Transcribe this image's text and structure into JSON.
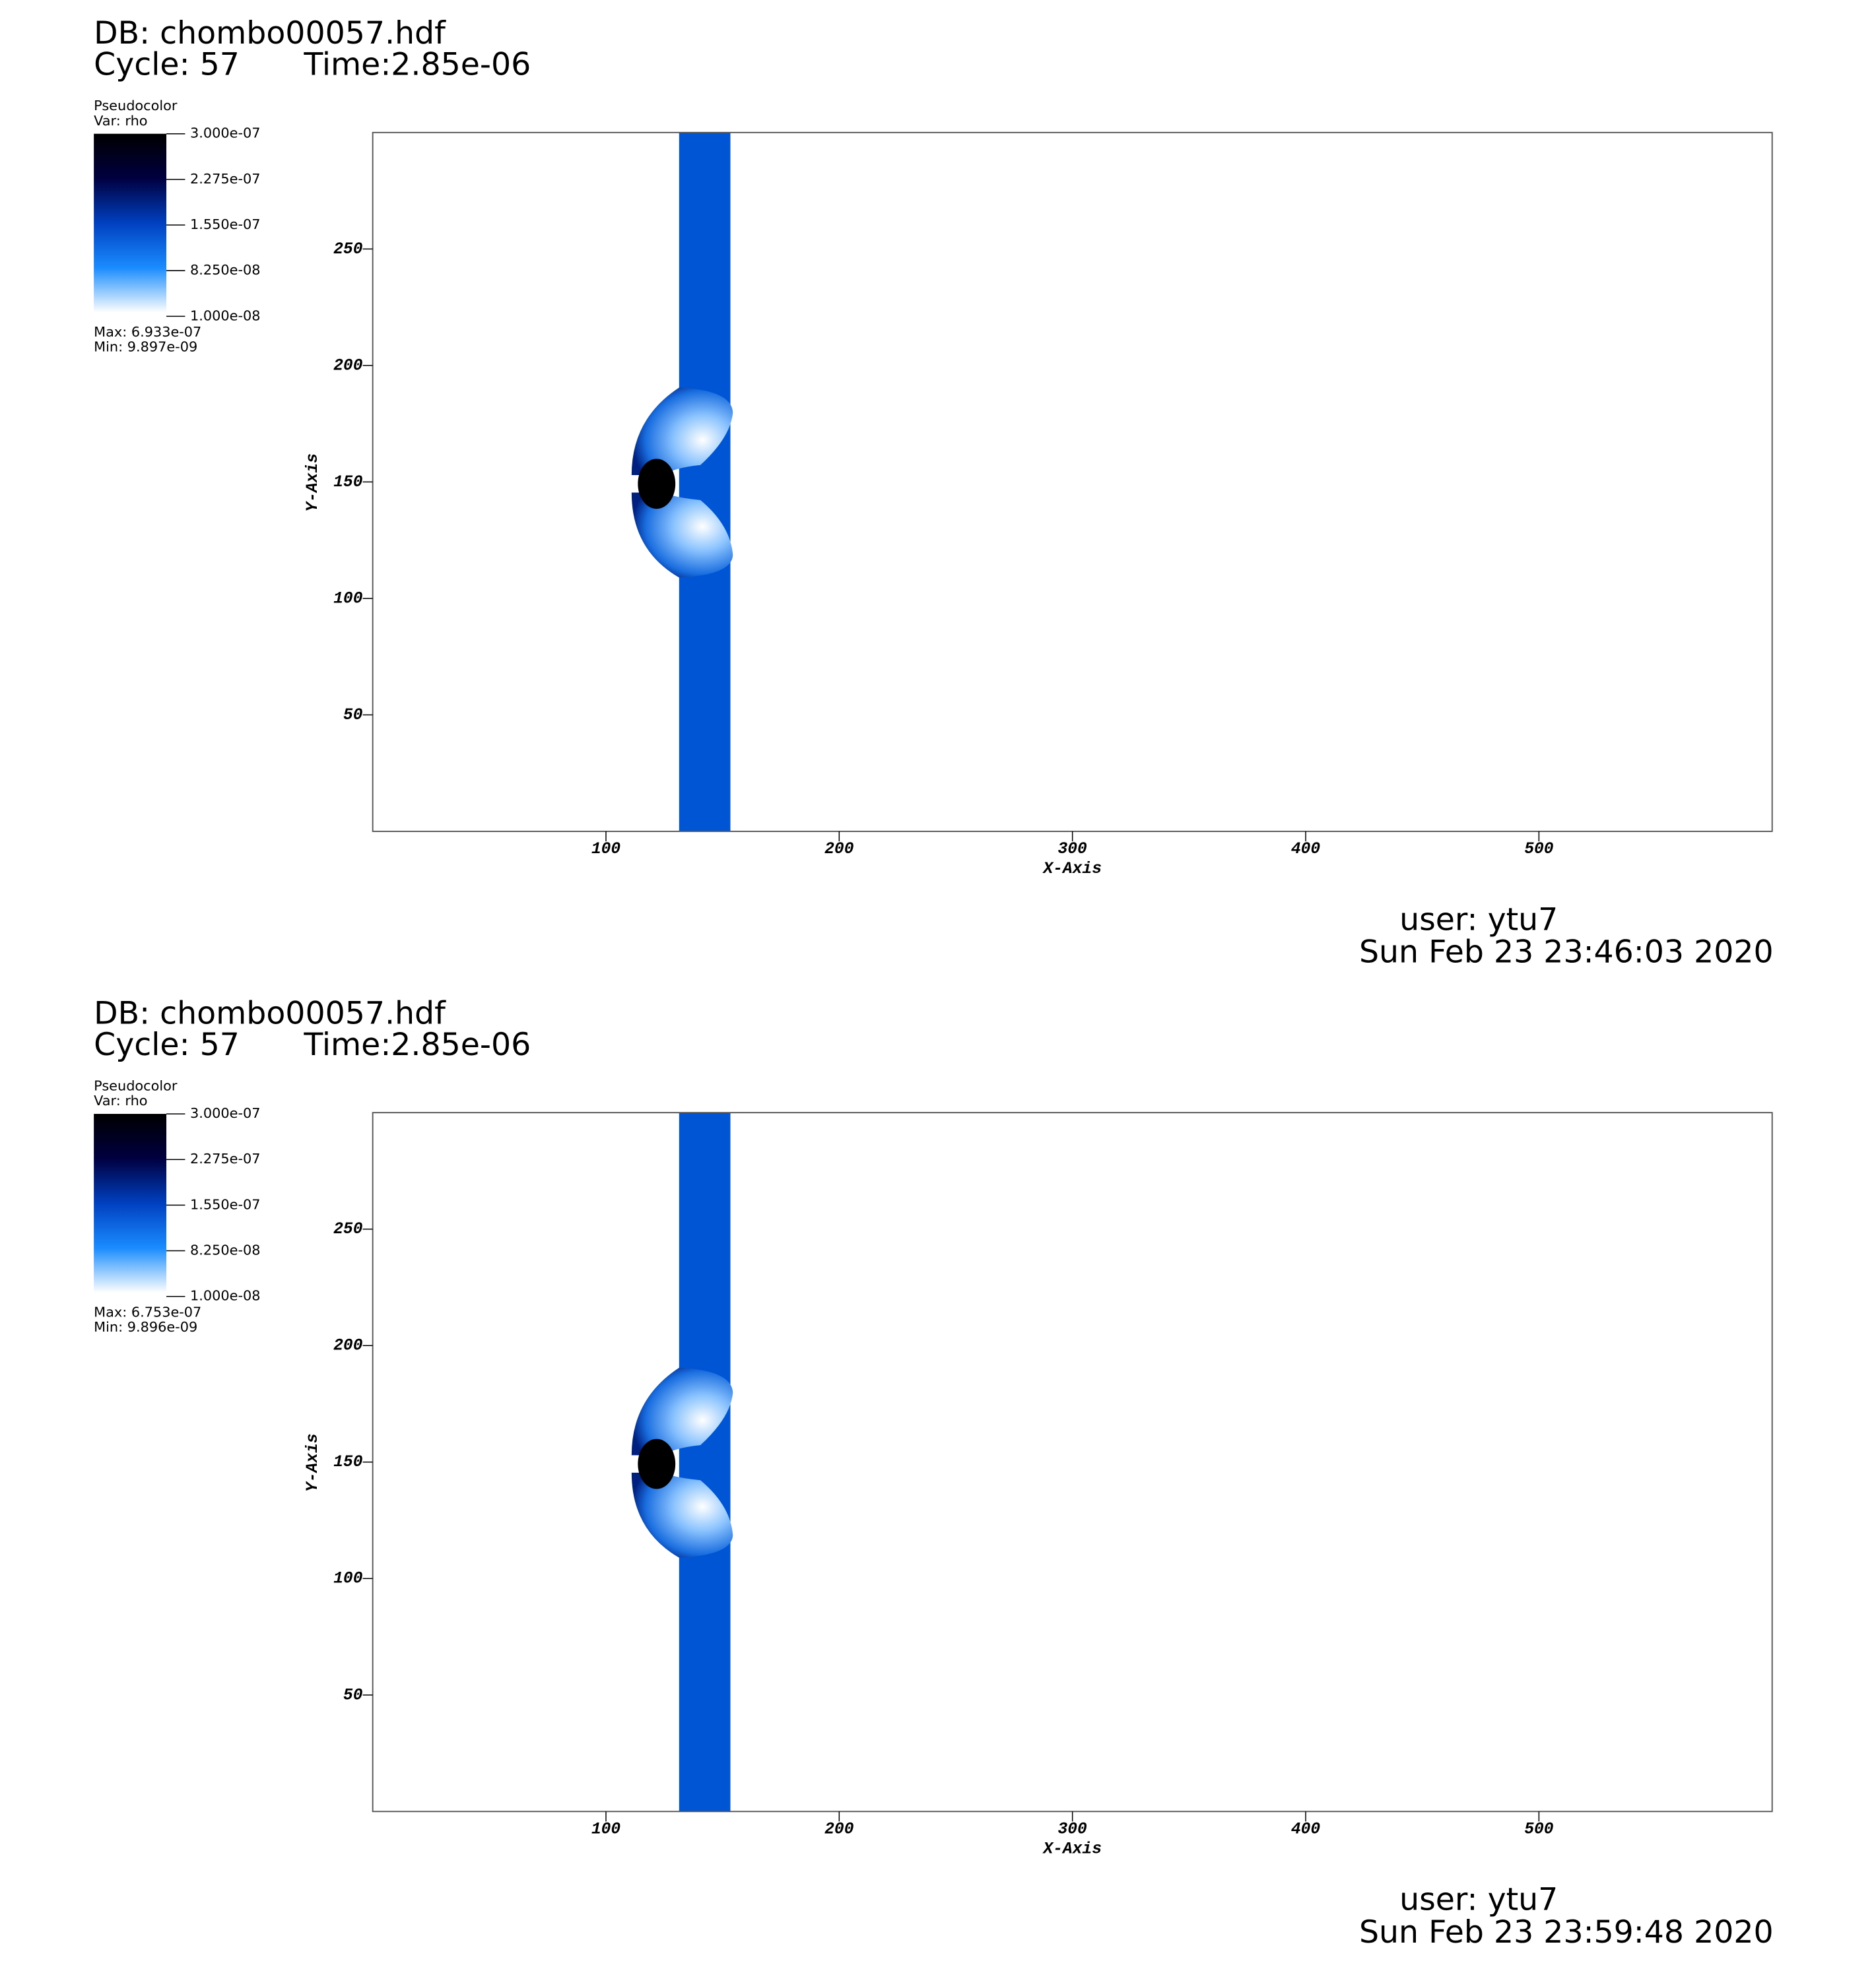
{
  "chart_data": [
    {
      "type": "pseudocolor",
      "title": "DB: chombo00057.hdf",
      "cycle": "Cycle: 57",
      "time": "Time:2.85e-06",
      "legend_title": "Pseudocolor",
      "variable": "Var: rho",
      "colorbar_lim": [
        1e-08,
        3e-07
      ],
      "colorbar_ticks": [
        {
          "value": 3e-07,
          "label": "3.000e-07"
        },
        {
          "value": 2.275e-07,
          "label": "2.275e-07"
        },
        {
          "value": 1.55e-07,
          "label": "1.550e-07"
        },
        {
          "value": 8.25e-08,
          "label": "8.250e-08"
        },
        {
          "value": 1e-08,
          "label": "1.000e-08"
        }
      ],
      "max": "Max:  6.933e-07",
      "min": "Min:  9.897e-09",
      "xlabel": "X-Axis",
      "ylabel": "Y-Axis",
      "xlim": [
        0,
        600
      ],
      "xticks": [
        100,
        200,
        300,
        400,
        500
      ],
      "ylim": [
        0,
        300
      ],
      "yticks": [
        50,
        100,
        150,
        200,
        250
      ],
      "user": "user: ytu7",
      "date": "Sun Feb 23 23:46:03 2020"
    },
    {
      "type": "pseudocolor",
      "title": "DB: chombo00057.hdf",
      "cycle": "Cycle: 57",
      "time": "Time:2.85e-06",
      "legend_title": "Pseudocolor",
      "variable": "Var: rho",
      "colorbar_lim": [
        1e-08,
        3e-07
      ],
      "colorbar_ticks": [
        {
          "value": 3e-07,
          "label": "3.000e-07"
        },
        {
          "value": 2.275e-07,
          "label": "2.275e-07"
        },
        {
          "value": 1.55e-07,
          "label": "1.550e-07"
        },
        {
          "value": 8.25e-08,
          "label": "8.250e-08"
        },
        {
          "value": 1e-08,
          "label": "1.000e-08"
        }
      ],
      "max": "Max:  6.753e-07",
      "min": "Min:  9.896e-09",
      "xlabel": "X-Axis",
      "ylabel": "Y-Axis",
      "xlim": [
        0,
        600
      ],
      "xticks": [
        100,
        200,
        300,
        400,
        500
      ],
      "ylim": [
        0,
        300
      ],
      "yticks": [
        50,
        100,
        150,
        200,
        250
      ],
      "user": "user: ytu7",
      "date": "Sun Feb 23 23:59:48 2020"
    }
  ]
}
